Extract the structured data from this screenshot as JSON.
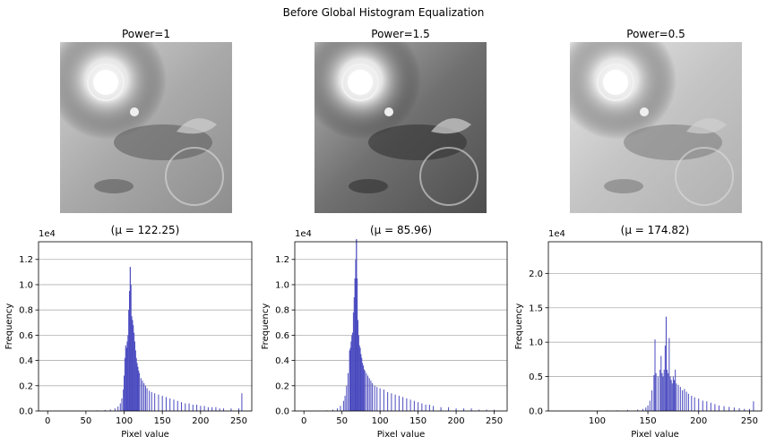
{
  "figure": {
    "suptitle": "Before Global Histogram Equalization"
  },
  "panels": [
    {
      "title": "Power=1",
      "tone": "normal"
    },
    {
      "title": "Power=1.5",
      "tone": "dark"
    },
    {
      "title": "Power=0.5",
      "tone": "bright"
    }
  ],
  "colors": {
    "bar": "#4b4bc0",
    "grid": "#b0b0b0",
    "axis": "#000000"
  },
  "chart_data": [
    {
      "type": "bar",
      "title": "(μ = 122.25)",
      "xlabel": "Pixel value",
      "ylabel": "Frequency",
      "y_scale_label": "1e4",
      "xlim": [
        -12,
        267
      ],
      "ylim": [
        0,
        1.34
      ],
      "xticks": [
        0,
        50,
        100,
        150,
        200,
        250
      ],
      "yticks": [
        0.0,
        0.2,
        0.4,
        0.6,
        0.8,
        1.0,
        1.2
      ],
      "grid": "y",
      "peak": {
        "x": 108,
        "y": 1.14
      },
      "x": [
        55,
        65,
        75,
        82,
        88,
        92,
        95,
        97,
        99,
        100,
        101,
        102,
        103,
        104,
        105,
        106,
        107,
        108,
        109,
        110,
        111,
        112,
        113,
        114,
        115,
        116,
        117,
        118,
        119,
        120,
        122,
        124,
        126,
        128,
        130,
        133,
        136,
        140,
        145,
        150,
        155,
        160,
        165,
        170,
        175,
        180,
        185,
        190,
        195,
        200,
        205,
        210,
        215,
        220,
        225,
        230,
        240,
        250,
        254
      ],
      "y": [
        0.003,
        0.005,
        0.008,
        0.012,
        0.02,
        0.035,
        0.06,
        0.1,
        0.17,
        0.28,
        0.42,
        0.52,
        0.5,
        0.55,
        0.6,
        0.8,
        0.95,
        1.14,
        1.0,
        0.75,
        0.72,
        0.68,
        0.62,
        0.55,
        0.48,
        0.42,
        0.38,
        0.35,
        0.32,
        0.3,
        0.26,
        0.24,
        0.22,
        0.2,
        0.18,
        0.16,
        0.15,
        0.14,
        0.13,
        0.12,
        0.11,
        0.1,
        0.09,
        0.08,
        0.07,
        0.06,
        0.06,
        0.05,
        0.05,
        0.04,
        0.04,
        0.03,
        0.03,
        0.03,
        0.02,
        0.02,
        0.02,
        0.02,
        0.14
      ]
    },
    {
      "type": "bar",
      "title": "(μ = 85.96)",
      "xlabel": "Pixel value",
      "ylabel": "Frequency",
      "y_scale_label": "1e4",
      "xlim": [
        -12,
        267
      ],
      "ylim": [
        0,
        1.34
      ],
      "xticks": [
        0,
        50,
        100,
        150,
        200,
        250
      ],
      "yticks": [
        0.0,
        0.2,
        0.4,
        0.6,
        0.8,
        1.0,
        1.2
      ],
      "grid": "y",
      "peak": {
        "x": 69,
        "y": 1.36
      },
      "x": [
        30,
        38,
        44,
        48,
        52,
        54,
        56,
        58,
        60,
        61,
        62,
        63,
        64,
        65,
        66,
        67,
        68,
        69,
        70,
        71,
        72,
        73,
        74,
        75,
        76,
        77,
        78,
        79,
        80,
        82,
        84,
        86,
        88,
        90,
        93,
        96,
        100,
        105,
        110,
        115,
        120,
        125,
        130,
        135,
        140,
        145,
        150,
        155,
        160,
        165,
        170,
        180,
        190,
        200,
        210,
        220,
        230,
        240,
        250
      ],
      "y": [
        0.005,
        0.01,
        0.02,
        0.04,
        0.08,
        0.12,
        0.2,
        0.3,
        0.48,
        0.5,
        0.55,
        0.6,
        0.62,
        0.78,
        0.9,
        1.05,
        1.2,
        1.36,
        1.05,
        0.72,
        0.6,
        0.52,
        0.5,
        0.45,
        0.42,
        0.38,
        0.36,
        0.33,
        0.32,
        0.3,
        0.28,
        0.26,
        0.24,
        0.22,
        0.2,
        0.19,
        0.18,
        0.17,
        0.15,
        0.14,
        0.13,
        0.12,
        0.11,
        0.1,
        0.09,
        0.08,
        0.07,
        0.06,
        0.05,
        0.05,
        0.04,
        0.03,
        0.03,
        0.02,
        0.02,
        0.02,
        0.01,
        0.01,
        0.01
      ]
    },
    {
      "type": "bar",
      "title": "(μ = 174.82)",
      "xlabel": "Pixel value",
      "ylabel": "Frequency",
      "y_scale_label": "1e4",
      "xlim": [
        52,
        262
      ],
      "ylim": [
        0,
        2.46
      ],
      "xticks": [
        100,
        150,
        200,
        250
      ],
      "yticks": [
        0.0,
        0.5,
        1.0,
        1.5,
        2.0
      ],
      "grid": "y",
      "peak": {
        "x": 168,
        "y": 1.37
      },
      "x": [
        100,
        110,
        120,
        130,
        140,
        145,
        148,
        150,
        152,
        154,
        156,
        157,
        158,
        160,
        162,
        163,
        164,
        165,
        166,
        167,
        168,
        169,
        170,
        171,
        172,
        173,
        174,
        175,
        176,
        177,
        178,
        180,
        182,
        184,
        186,
        188,
        190,
        193,
        196,
        200,
        204,
        208,
        212,
        216,
        220,
        225,
        230,
        235,
        240,
        245,
        250,
        254
      ],
      "y": [
        0.005,
        0.008,
        0.01,
        0.015,
        0.02,
        0.03,
        0.05,
        0.08,
        0.15,
        0.3,
        0.52,
        1.04,
        0.55,
        0.5,
        0.6,
        0.8,
        0.55,
        0.5,
        0.6,
        0.95,
        1.37,
        0.6,
        0.55,
        1.06,
        0.5,
        0.45,
        0.4,
        0.5,
        0.45,
        0.6,
        0.4,
        0.38,
        0.35,
        0.3,
        0.32,
        0.28,
        0.25,
        0.22,
        0.2,
        0.18,
        0.15,
        0.14,
        0.12,
        0.1,
        0.08,
        0.07,
        0.06,
        0.05,
        0.04,
        0.03,
        0.03,
        0.14
      ]
    }
  ]
}
